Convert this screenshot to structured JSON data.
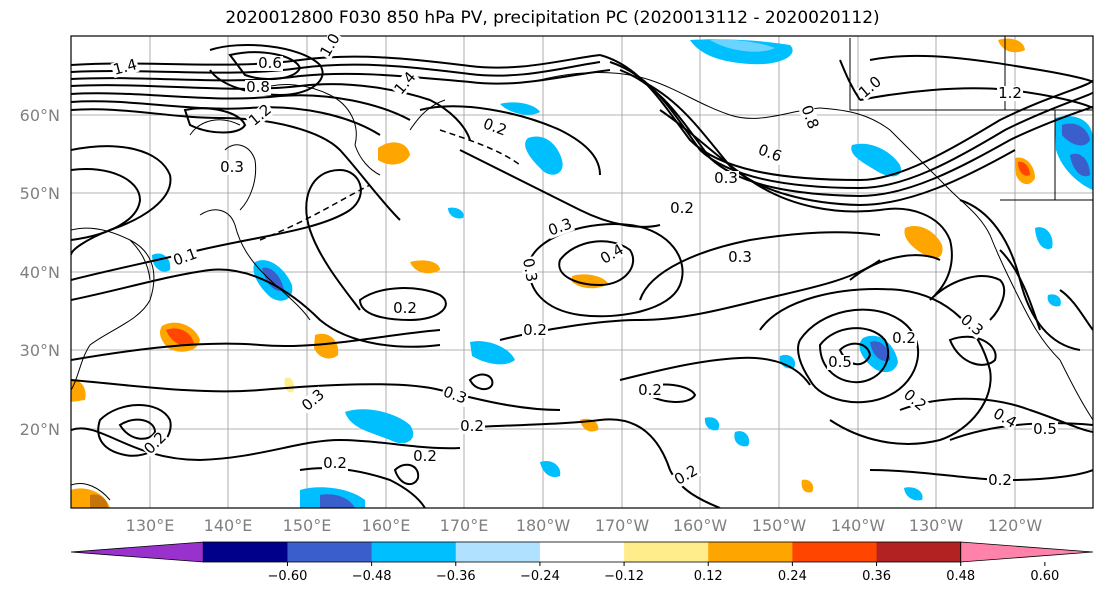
{
  "title": "2020012800 F030 850 hPa PV, precipitation PC (2020013112 - 2020020112)",
  "lat_labels": [
    "60°N",
    "50°N",
    "40°N",
    "30°N",
    "20°N"
  ],
  "lon_labels": [
    "130°E",
    "140°E",
    "150°E",
    "160°E",
    "170°E",
    "180°W",
    "170°W",
    "160°W",
    "150°W",
    "140°W",
    "130°W",
    "120°W"
  ],
  "colorbar": {
    "colors": [
      "#9932CC",
      "#00008B",
      "#3A5FCD",
      "#00BFFF",
      "#B0E2FF",
      "#FFFFFF",
      "#FFEC8B",
      "#FFA500",
      "#FF4500",
      "#B22222",
      "#FF82AB"
    ],
    "labels": [
      "−0.60",
      "−0.48",
      "−0.36",
      "−0.24",
      "−0.12",
      "0.12",
      "0.24",
      "0.36",
      "0.48",
      "0.60"
    ]
  },
  "contour_labels": [
    "1.4",
    "0.6",
    "0.8",
    "1.0",
    "1.4",
    "1.2",
    "0.2",
    "0.3",
    "0.6",
    "0.8",
    "1.0",
    "1.2",
    "0.3",
    "0.2",
    "0.3",
    "0.4",
    "0.3",
    "0.3",
    "0.2",
    "0.2",
    "0.3",
    "0.2",
    "0.2",
    "0.2",
    "0.2",
    "0.2",
    "0.3",
    "0.2",
    "0.5",
    "0.2",
    "0.2",
    "0.4",
    "0.5",
    "0.2",
    "0.3",
    "0.1"
  ]
}
